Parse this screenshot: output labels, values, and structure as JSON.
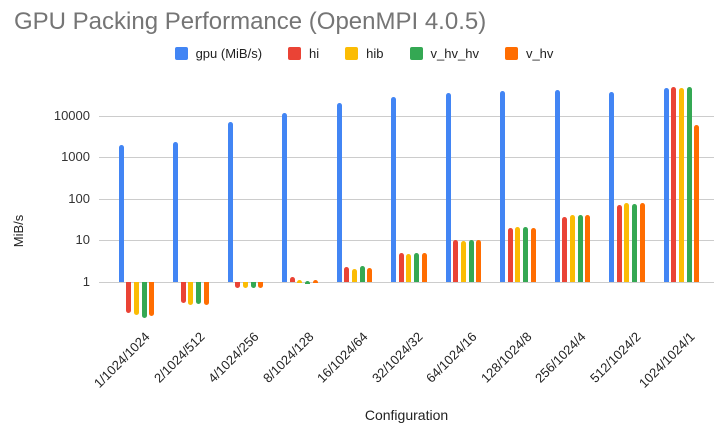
{
  "chart_data": {
    "type": "bar",
    "title": "GPU Packing Performance (OpenMPI 4.0.5)",
    "xlabel": "Configuration",
    "ylabel": "MiB/s",
    "y_scale": "log",
    "y_ticks": [
      1,
      10,
      100,
      1000,
      10000
    ],
    "ylim": [
      0.13,
      56000
    ],
    "grid": "horizontal",
    "legend_position": "top",
    "categories": [
      "1/1024/1024",
      "2/1024/512",
      "4/1024/256",
      "8/1024/128",
      "16/1024/64",
      "32/1024/32",
      "64/1024/16",
      "128/1024/8",
      "256/1024/4",
      "512/1024/2",
      "1024/1024/1"
    ],
    "series": [
      {
        "name": "gpu (MiB/s)",
        "color": "#4285F4",
        "values": [
          2000,
          2300,
          7200,
          11500,
          20500,
          28500,
          36000,
          39000,
          41500,
          38000,
          45500
        ]
      },
      {
        "name": "hi",
        "color": "#EA4335",
        "values": [
          0.18,
          0.31,
          0.72,
          1.3,
          2.3,
          5.1,
          10.2,
          20,
          36,
          72,
          48000
        ]
      },
      {
        "name": "hib",
        "color": "#FBBC04",
        "values": [
          0.16,
          0.28,
          0.7,
          1.15,
          2.1,
          4.6,
          9.5,
          21,
          41,
          80,
          45500
        ]
      },
      {
        "name": "v_hv_hv",
        "color": "#34A853",
        "values": [
          0.14,
          0.3,
          0.72,
          1.05,
          2.4,
          4.9,
          10.4,
          21,
          40,
          75,
          49500
        ]
      },
      {
        "name": "v_hv",
        "color": "#FF6D01",
        "values": [
          0.15,
          0.28,
          0.7,
          1.1,
          2.2,
          5.1,
          10.4,
          20,
          40,
          81,
          6000
        ]
      }
    ]
  },
  "colors": {
    "background": "#ffffff",
    "title_text": "#757575",
    "axis_tick_text": "#333333",
    "label_text": "#222222",
    "gridline": "#cccccc"
  }
}
